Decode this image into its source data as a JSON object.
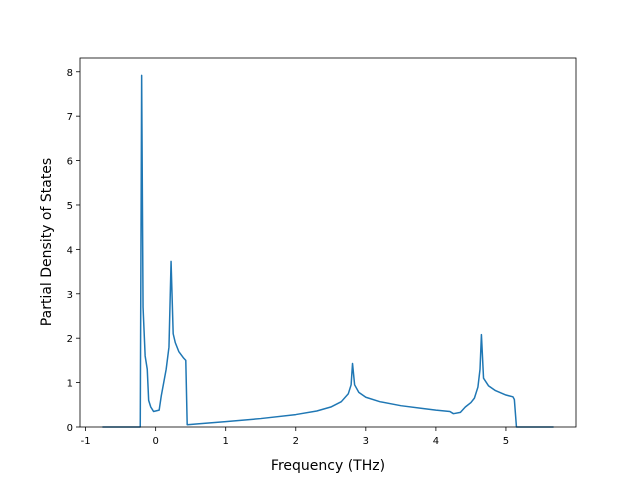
{
  "chart_data": {
    "type": "line",
    "xlabel": "Frequency (THz)",
    "ylabel": "Partial Density of States",
    "x": [
      -0.76,
      -0.22,
      -0.2,
      -0.18,
      -0.15,
      -0.12,
      -0.1,
      -0.07,
      -0.03,
      0.05,
      0.08,
      0.15,
      0.19,
      0.22,
      0.25,
      0.28,
      0.33,
      0.4,
      0.43,
      0.45,
      0.6,
      1.0,
      1.5,
      2.0,
      2.3,
      2.5,
      2.65,
      2.75,
      2.79,
      2.81,
      2.84,
      2.9,
      3.0,
      3.2,
      3.5,
      3.8,
      4.0,
      4.2,
      4.25,
      4.35,
      4.42,
      4.5,
      4.55,
      4.6,
      4.63,
      4.65,
      4.68,
      4.75,
      4.85,
      5.0,
      5.1,
      5.12,
      5.15,
      5.68
    ],
    "series": [
      {
        "color": "#1f77b4",
        "values": [
          0,
          0,
          7.92,
          2.7,
          1.6,
          1.3,
          0.6,
          0.45,
          0.35,
          0.38,
          0.7,
          1.3,
          1.8,
          3.73,
          2.1,
          1.9,
          1.7,
          1.55,
          1.5,
          0.05,
          0.07,
          0.12,
          0.19,
          0.28,
          0.36,
          0.45,
          0.57,
          0.75,
          0.95,
          1.43,
          0.95,
          0.78,
          0.67,
          0.57,
          0.48,
          0.42,
          0.38,
          0.35,
          0.3,
          0.33,
          0.45,
          0.55,
          0.65,
          0.9,
          1.3,
          2.08,
          1.1,
          0.93,
          0.82,
          0.72,
          0.68,
          0.62,
          0,
          0
        ]
      }
    ],
    "xlim": [
      -1.08,
      6.0
    ],
    "ylim": [
      0,
      8.31
    ],
    "xticks": [
      -1,
      0,
      1,
      2,
      3,
      4,
      5
    ],
    "yticks": [
      0,
      1,
      2,
      3,
      4,
      5,
      6,
      7,
      8
    ]
  }
}
